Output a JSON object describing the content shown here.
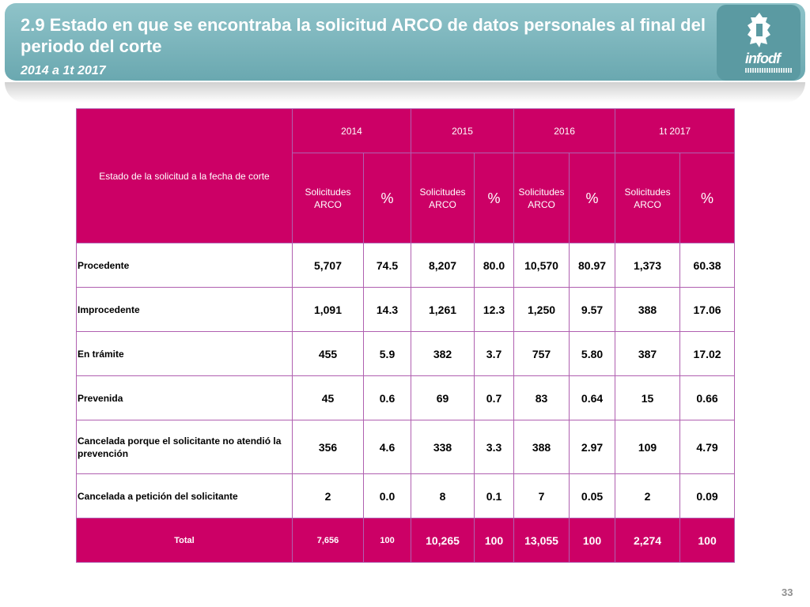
{
  "header": {
    "title": "2.9 Estado en que se encontraba la solicitud ARCO de datos personales al final del periodo del corte",
    "subtitle": "2014 a 1t 2017"
  },
  "logo": {
    "word": "infodf",
    "icon": "cdmx-emblem-icon"
  },
  "table": {
    "row_header_label": "Estado de la solicitud a la fecha de corte",
    "years": [
      "2014",
      "2015",
      "2016",
      "1t 2017"
    ],
    "col_solicitudes": "Solicitudes ARCO",
    "col_pct": "%",
    "rows": [
      {
        "label": "Procedente",
        "v": [
          "5,707",
          "74.5",
          "8,207",
          "80.0",
          "10,570",
          "80.97",
          "1,373",
          "60.38"
        ]
      },
      {
        "label": "Improcedente",
        "v": [
          "1,091",
          "14.3",
          "1,261",
          "12.3",
          "1,250",
          "9.57",
          "388",
          "17.06"
        ]
      },
      {
        "label": "En trámite",
        "v": [
          "455",
          "5.9",
          "382",
          "3.7",
          "757",
          "5.80",
          "387",
          "17.02"
        ]
      },
      {
        "label": "Prevenida",
        "v": [
          "45",
          "0.6",
          "69",
          "0.7",
          "83",
          "0.64",
          "15",
          "0.66"
        ]
      },
      {
        "label": "Cancelada porque el solicitante no atendió la prevención",
        "v": [
          "356",
          "4.6",
          "338",
          "3.3",
          "388",
          "2.97",
          "109",
          "4.79"
        ]
      },
      {
        "label": "Cancelada a petición del solicitante",
        "v": [
          "2",
          "0.0",
          "8",
          "0.1",
          "7",
          "0.05",
          "2",
          "0.09"
        ]
      }
    ],
    "total": {
      "label": "Total",
      "v": [
        "7,656",
        "100",
        "10,265",
        "100",
        "13,055",
        "100",
        "2,274",
        "100"
      ]
    }
  },
  "colors": {
    "banner": "#6aa8b0",
    "header_fill": "#cc0066",
    "border": "#b060b0"
  },
  "page_number": "33"
}
